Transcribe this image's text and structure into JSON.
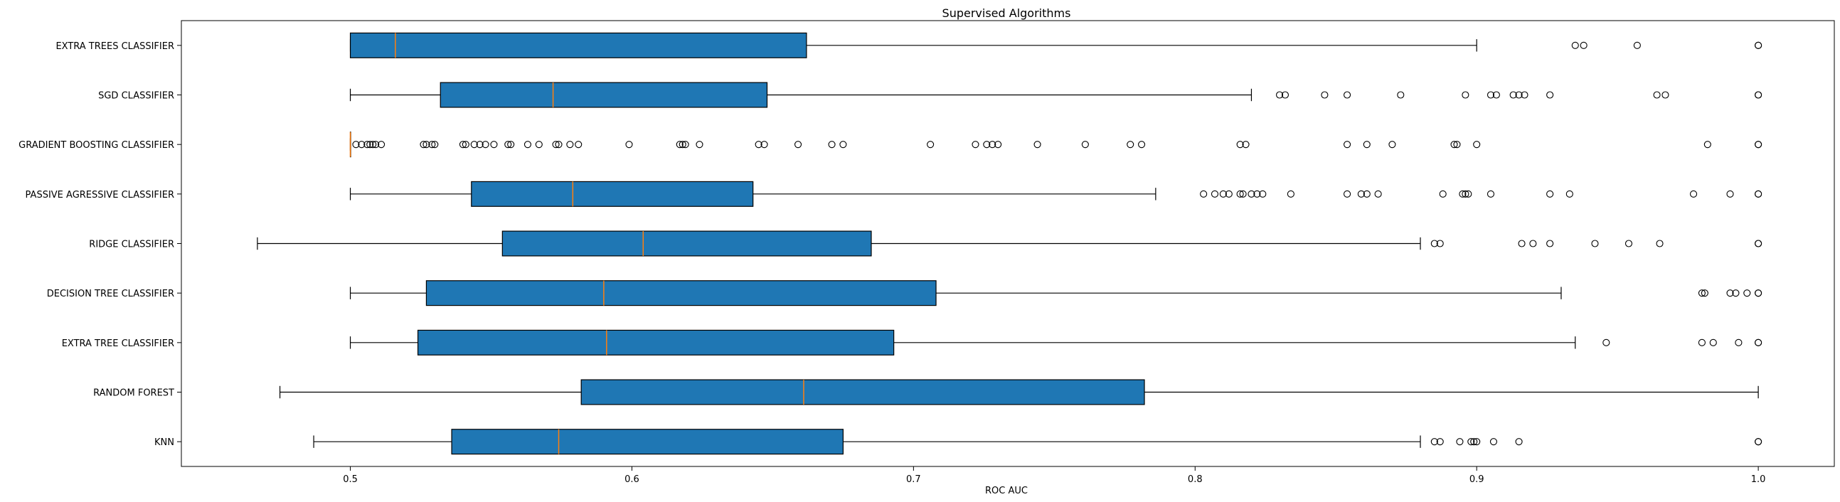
{
  "chart_data": {
    "type": "boxplot",
    "title": "Supervised Algorithms",
    "xlabel": "ROC AUC",
    "ylabel": "",
    "orientation": "horizontal",
    "xlim": [
      0.44,
      1.027
    ],
    "xticks": [
      0.5,
      0.6,
      0.7,
      0.8,
      0.9,
      1.0
    ],
    "xtick_labels": [
      "0.5",
      "0.6",
      "0.7",
      "0.8",
      "0.9",
      "1.0"
    ],
    "grid": false,
    "legend": "none",
    "colors": {
      "box_fill": "#1f77b4",
      "median": "#ff7f0e",
      "line": "#000000"
    },
    "categories": [
      "EXTRA TREES CLASSIFIER",
      "SGD CLASSIFIER",
      "GRADIENT BOOSTING CLASSIFIER",
      "PASSIVE AGRESSIVE CLASSIFIER",
      "RIDGE CLASSIFIER",
      "DECISION TREE CLASSIFIER",
      "EXTRA TREE CLASSIFIER",
      "RANDOM FOREST",
      "KNN"
    ],
    "boxes": [
      {
        "whislo": 0.5,
        "q1": 0.5,
        "med": 0.516,
        "q3": 0.662,
        "whishi": 0.9,
        "fliers": [
          0.935,
          0.938,
          0.957,
          1.0,
          1.0
        ]
      },
      {
        "whislo": 0.5,
        "q1": 0.532,
        "med": 0.572,
        "q3": 0.648,
        "whishi": 0.82,
        "fliers": [
          0.83,
          0.832,
          0.846,
          0.854,
          0.873,
          0.896,
          0.905,
          0.907,
          0.913,
          0.915,
          0.917,
          0.926,
          0.964,
          0.967,
          1.0,
          1.0
        ]
      },
      {
        "whislo": 0.5,
        "q1": 0.5,
        "med": 0.5,
        "q3": 0.5,
        "whishi": 0.5,
        "fliers": [
          0.502,
          0.504,
          0.506,
          0.507,
          0.508,
          0.509,
          0.511,
          0.526,
          0.527,
          0.529,
          0.53,
          0.54,
          0.541,
          0.544,
          0.546,
          0.548,
          0.551,
          0.556,
          0.557,
          0.563,
          0.567,
          0.573,
          0.574,
          0.578,
          0.581,
          0.599,
          0.617,
          0.618,
          0.619,
          0.624,
          0.645,
          0.647,
          0.659,
          0.671,
          0.675,
          0.706,
          0.722,
          0.726,
          0.728,
          0.73,
          0.744,
          0.761,
          0.777,
          0.781,
          0.816,
          0.818,
          0.854,
          0.861,
          0.87,
          0.892,
          0.893,
          0.9,
          0.982,
          1.0,
          1.0
        ]
      },
      {
        "whislo": 0.5,
        "q1": 0.543,
        "med": 0.579,
        "q3": 0.643,
        "whishi": 0.786,
        "fliers": [
          0.803,
          0.807,
          0.81,
          0.812,
          0.816,
          0.817,
          0.82,
          0.822,
          0.824,
          0.834,
          0.854,
          0.859,
          0.861,
          0.865,
          0.888,
          0.895,
          0.896,
          0.897,
          0.905,
          0.926,
          0.933,
          0.977,
          0.99,
          1.0,
          1.0
        ]
      },
      {
        "whislo": 0.467,
        "q1": 0.554,
        "med": 0.604,
        "q3": 0.685,
        "whishi": 0.88,
        "fliers": [
          0.885,
          0.887,
          0.916,
          0.92,
          0.926,
          0.942,
          0.954,
          0.965,
          1.0,
          1.0
        ]
      },
      {
        "whislo": 0.5,
        "q1": 0.527,
        "med": 0.59,
        "q3": 0.708,
        "whishi": 0.93,
        "fliers": [
          0.98,
          0.981,
          0.99,
          0.992,
          0.996,
          1.0,
          1.0
        ]
      },
      {
        "whislo": 0.5,
        "q1": 0.524,
        "med": 0.591,
        "q3": 0.693,
        "whishi": 0.935,
        "fliers": [
          0.946,
          0.98,
          0.984,
          0.993,
          1.0,
          1.0
        ]
      },
      {
        "whislo": 0.475,
        "q1": 0.582,
        "med": 0.661,
        "q3": 0.782,
        "whishi": 1.0,
        "fliers": []
      },
      {
        "whislo": 0.487,
        "q1": 0.536,
        "med": 0.574,
        "q3": 0.675,
        "whishi": 0.88,
        "fliers": [
          0.885,
          0.887,
          0.894,
          0.898,
          0.899,
          0.9,
          0.906,
          0.915,
          1.0,
          1.0
        ]
      }
    ]
  }
}
